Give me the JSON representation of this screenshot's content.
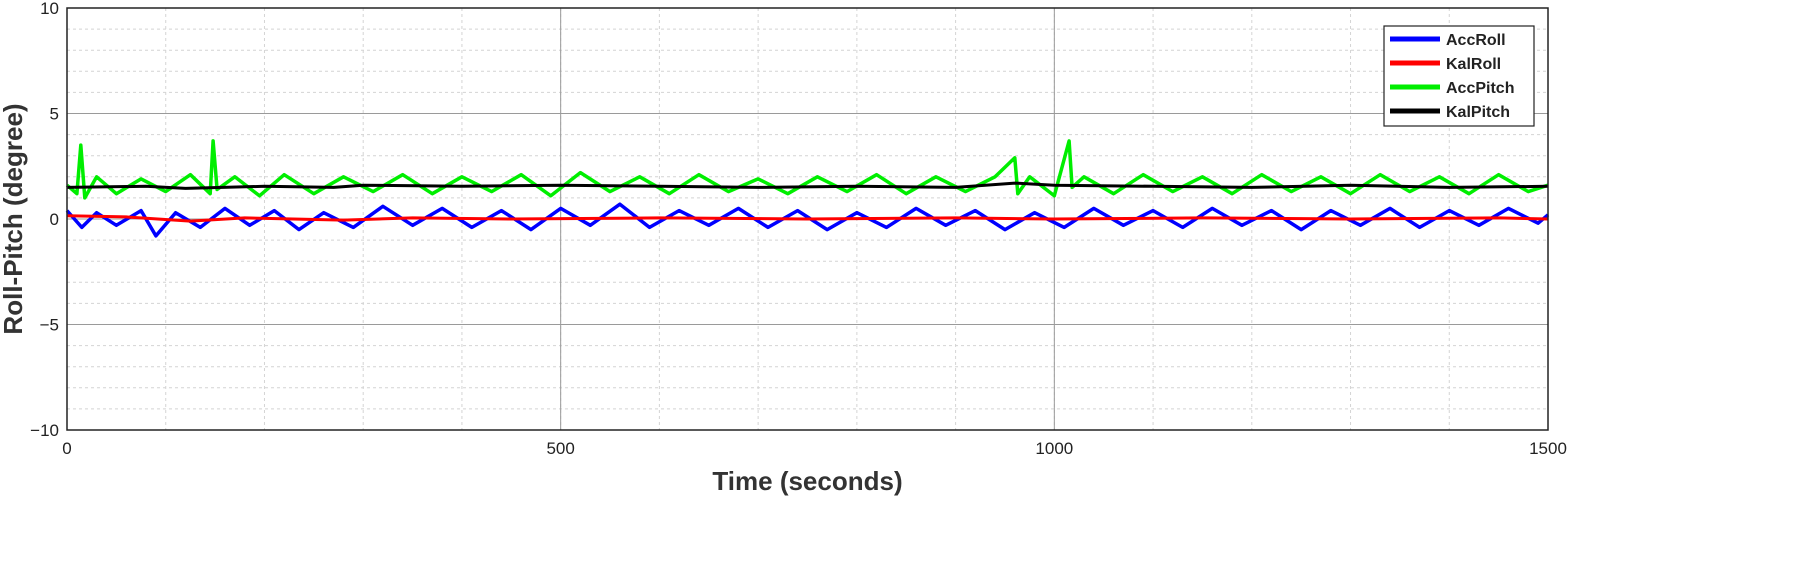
{
  "chart_data": {
    "type": "line",
    "xlabel": "Time (seconds)",
    "ylabel": "Roll-Pitch (degree)",
    "xlim": [
      0,
      1500
    ],
    "ylim": [
      -10,
      10
    ],
    "xticks": [
      0,
      500,
      1000,
      1500
    ],
    "xtick_labels": [
      "0",
      "500",
      "1000",
      "1500"
    ],
    "yticks": [
      -10,
      -5,
      0,
      5,
      10
    ],
    "ytick_labels": [
      "−10",
      "−5",
      "0",
      "5",
      "10"
    ],
    "grid": true,
    "minor_grid": true,
    "legend_position": "top-right",
    "series": [
      {
        "name": "AccRoll",
        "color": "#0000ff",
        "x": [
          0,
          15,
          30,
          50,
          75,
          90,
          110,
          135,
          160,
          185,
          210,
          235,
          260,
          290,
          320,
          350,
          380,
          410,
          440,
          470,
          500,
          530,
          560,
          590,
          620,
          650,
          680,
          710,
          740,
          770,
          800,
          830,
          860,
          890,
          920,
          950,
          980,
          1010,
          1040,
          1070,
          1100,
          1130,
          1160,
          1190,
          1220,
          1250,
          1280,
          1310,
          1340,
          1370,
          1400,
          1430,
          1460,
          1490,
          1500
        ],
        "y": [
          0.4,
          -0.4,
          0.3,
          -0.3,
          0.4,
          -0.8,
          0.3,
          -0.4,
          0.5,
          -0.3,
          0.4,
          -0.5,
          0.3,
          -0.4,
          0.6,
          -0.3,
          0.5,
          -0.4,
          0.4,
          -0.5,
          0.5,
          -0.3,
          0.7,
          -0.4,
          0.4,
          -0.3,
          0.5,
          -0.4,
          0.4,
          -0.5,
          0.3,
          -0.4,
          0.5,
          -0.3,
          0.4,
          -0.5,
          0.3,
          -0.4,
          0.5,
          -0.3,
          0.4,
          -0.4,
          0.5,
          -0.3,
          0.4,
          -0.5,
          0.4,
          -0.3,
          0.5,
          -0.4,
          0.4,
          -0.3,
          0.5,
          -0.2,
          0.2
        ]
      },
      {
        "name": "KalRoll",
        "color": "#ff0000",
        "x": [
          0,
          60,
          125,
          180,
          280,
          350,
          450,
          600,
          750,
          900,
          1000,
          1150,
          1300,
          1450,
          1500
        ],
        "y": [
          0.15,
          0.1,
          -0.1,
          0.05,
          -0.05,
          0.05,
          0.0,
          0.05,
          0.0,
          0.05,
          0.0,
          0.05,
          0.0,
          0.05,
          0.0
        ]
      },
      {
        "name": "AccPitch",
        "color": "#00ee00",
        "x": [
          0,
          10,
          14,
          18,
          30,
          50,
          75,
          100,
          125,
          145,
          148,
          152,
          170,
          195,
          220,
          250,
          280,
          310,
          340,
          370,
          400,
          430,
          460,
          490,
          520,
          550,
          580,
          610,
          640,
          670,
          700,
          730,
          760,
          790,
          820,
          850,
          880,
          910,
          940,
          960,
          963,
          975,
          1000,
          1015,
          1018,
          1030,
          1060,
          1090,
          1120,
          1150,
          1180,
          1210,
          1240,
          1270,
          1300,
          1330,
          1360,
          1390,
          1420,
          1450,
          1480,
          1500
        ],
        "y": [
          1.6,
          1.2,
          3.5,
          1.0,
          2.0,
          1.2,
          1.9,
          1.3,
          2.1,
          1.2,
          3.7,
          1.4,
          2.0,
          1.1,
          2.1,
          1.2,
          2.0,
          1.3,
          2.1,
          1.2,
          2.0,
          1.3,
          2.1,
          1.1,
          2.2,
          1.3,
          2.0,
          1.2,
          2.1,
          1.3,
          1.9,
          1.2,
          2.0,
          1.3,
          2.1,
          1.2,
          2.0,
          1.3,
          2.0,
          2.9,
          1.2,
          2.0,
          1.1,
          3.7,
          1.5,
          2.0,
          1.2,
          2.1,
          1.3,
          2.0,
          1.2,
          2.1,
          1.3,
          2.0,
          1.2,
          2.1,
          1.3,
          2.0,
          1.2,
          2.1,
          1.3,
          1.6
        ]
      },
      {
        "name": "KalPitch",
        "color": "#000000",
        "x": [
          0,
          80,
          120,
          200,
          270,
          300,
          400,
          500,
          600,
          700,
          800,
          900,
          960,
          1000,
          1100,
          1200,
          1300,
          1400,
          1500
        ],
        "y": [
          1.5,
          1.55,
          1.45,
          1.55,
          1.5,
          1.6,
          1.55,
          1.6,
          1.55,
          1.5,
          1.55,
          1.5,
          1.7,
          1.6,
          1.55,
          1.5,
          1.6,
          1.5,
          1.55
        ]
      }
    ]
  }
}
